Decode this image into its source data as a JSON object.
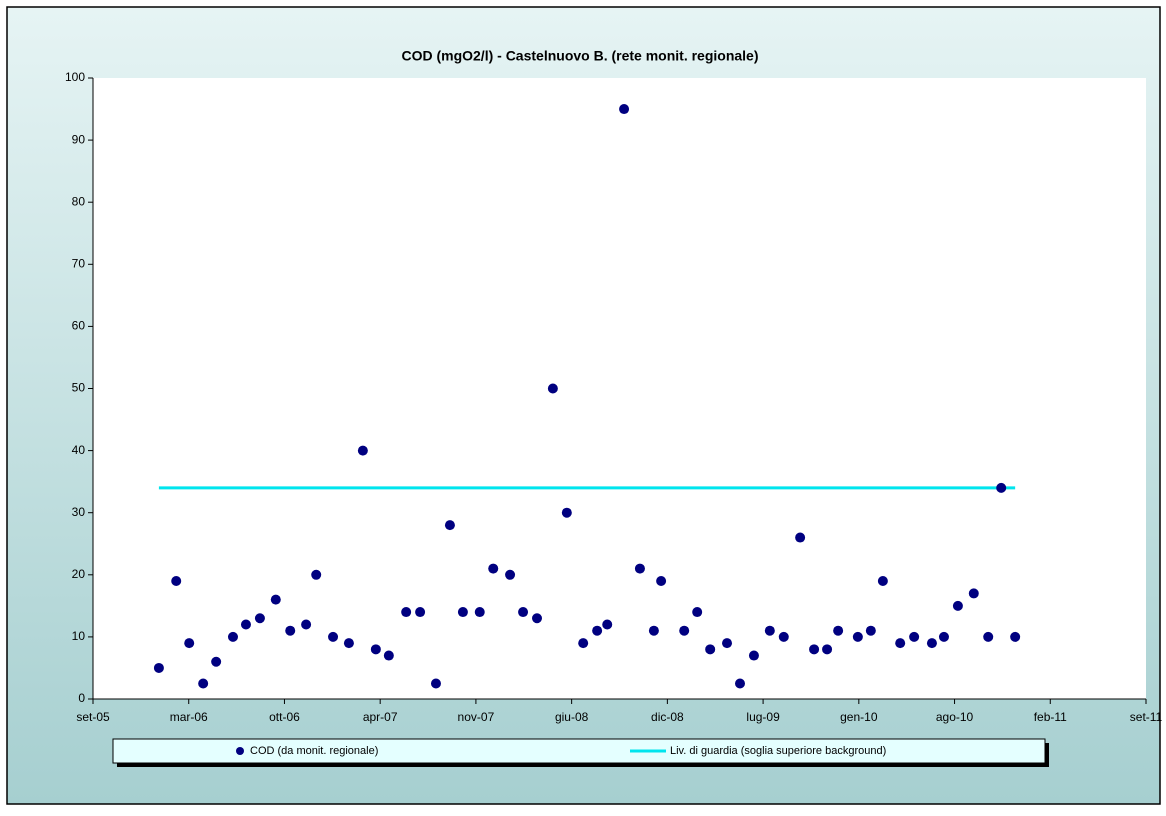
{
  "chart_data": {
    "type": "scatter",
    "title": "COD (mgO2/l) - Castelnuovo B. (rete monit. regionale)",
    "series": [
      {
        "name": "COD (da monit. regionale)",
        "type": "scatter",
        "color": "#000080",
        "x": [
          38742,
          38778,
          38805,
          38834,
          38861,
          38896,
          38923,
          38952,
          38985,
          39015,
          39048,
          39069,
          39104,
          39137,
          39166,
          39193,
          39220,
          39256,
          39285,
          39318,
          39347,
          39374,
          39409,
          39437,
          39472,
          39499,
          39528,
          39561,
          39590,
          39624,
          39653,
          39674,
          39709,
          39742,
          39771,
          39786,
          39834,
          39861,
          39888,
          39923,
          39950,
          39979,
          40012,
          40041,
          40075,
          40104,
          40131,
          40154,
          40195,
          40222,
          40247,
          40283,
          40312,
          40349,
          40374,
          40403,
          40436,
          40466,
          40493,
          40522
        ],
        "values": [
          5,
          19,
          9,
          2.5,
          6,
          10,
          12,
          13,
          16,
          11,
          12,
          20,
          10,
          9,
          40,
          8,
          7,
          14,
          14,
          2.5,
          28,
          14,
          14,
          21,
          20,
          14,
          13,
          50,
          30,
          9,
          11,
          12,
          95,
          21,
          11,
          19,
          11,
          14,
          8,
          9,
          2.5,
          7,
          11,
          10,
          26,
          8,
          8,
          11,
          10,
          11,
          19,
          9,
          10,
          9,
          10,
          15,
          17,
          10,
          34,
          10
        ]
      },
      {
        "name": "Liv. di guardia (soglia superiore background)",
        "type": "line",
        "color": "#00e5ee",
        "x": [
          38742,
          40522
        ],
        "values": [
          34,
          34
        ]
      }
    ],
    "xlim": [
      38605,
      40794
    ],
    "xticks": [
      {
        "value": 38605,
        "label": "set-05"
      },
      {
        "value": 38804,
        "label": "mar-06"
      },
      {
        "value": 39003,
        "label": "ott-06"
      },
      {
        "value": 39202,
        "label": "apr-07"
      },
      {
        "value": 39401,
        "label": "nov-07"
      },
      {
        "value": 39600,
        "label": "giu-08"
      },
      {
        "value": 39799,
        "label": "dic-08"
      },
      {
        "value": 39998,
        "label": "lug-09"
      },
      {
        "value": 40197,
        "label": "gen-10"
      },
      {
        "value": 40396,
        "label": "ago-10"
      },
      {
        "value": 40595,
        "label": "feb-11"
      },
      {
        "value": 40794,
        "label": "set-11"
      }
    ],
    "ylim": [
      0,
      100
    ],
    "yticks": [
      0,
      10,
      20,
      30,
      40,
      50,
      60,
      70,
      80,
      90,
      100
    ],
    "grid": false
  }
}
